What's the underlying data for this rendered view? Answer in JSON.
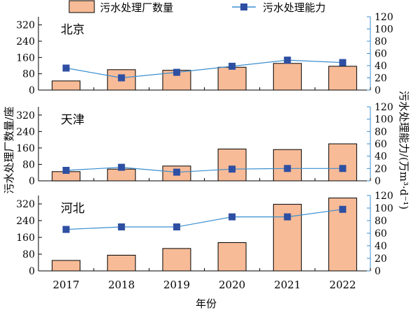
{
  "chart_data": {
    "type": "bar+line",
    "categories": [
      "2017",
      "2018",
      "2019",
      "2020",
      "2021",
      "2022"
    ],
    "xlabel": "年份",
    "ylabel_left": "污水处理厂数量/座",
    "ylabel_right": "污水处理能力/(万m³·d⁻¹)",
    "legend": {
      "bar": "污水处理厂数量",
      "line": "污水处理能力",
      "placement": "top"
    },
    "left_axis": {
      "ylim": [
        0,
        360
      ],
      "ticks": [
        "0",
        "80",
        "160",
        "240",
        "320"
      ]
    },
    "right_axis": {
      "ylim": [
        0,
        120
      ],
      "ticks": [
        "0",
        "20",
        "40",
        "60",
        "80",
        "100",
        "120"
      ]
    },
    "colors": {
      "bar": "#f8bb97",
      "bar_edge": "#000000",
      "line": "#3a8fd0",
      "marker": "#2e4fa2",
      "right_axis": "#3a8fd0"
    },
    "panels": [
      {
        "region": "北京",
        "plant_count": [
          45,
          100,
          97,
          112,
          131,
          117
        ],
        "capacity": [
          36,
          20,
          29,
          39,
          49,
          45
        ]
      },
      {
        "region": "天津",
        "plant_count": [
          45,
          57,
          72,
          155,
          152,
          180
        ],
        "capacity": [
          17,
          22,
          14,
          19,
          20,
          20
        ]
      },
      {
        "region": "河北",
        "plant_count": [
          50,
          75,
          107,
          135,
          318,
          348
        ],
        "capacity": [
          66,
          70,
          70,
          86,
          86,
          98
        ]
      }
    ]
  }
}
